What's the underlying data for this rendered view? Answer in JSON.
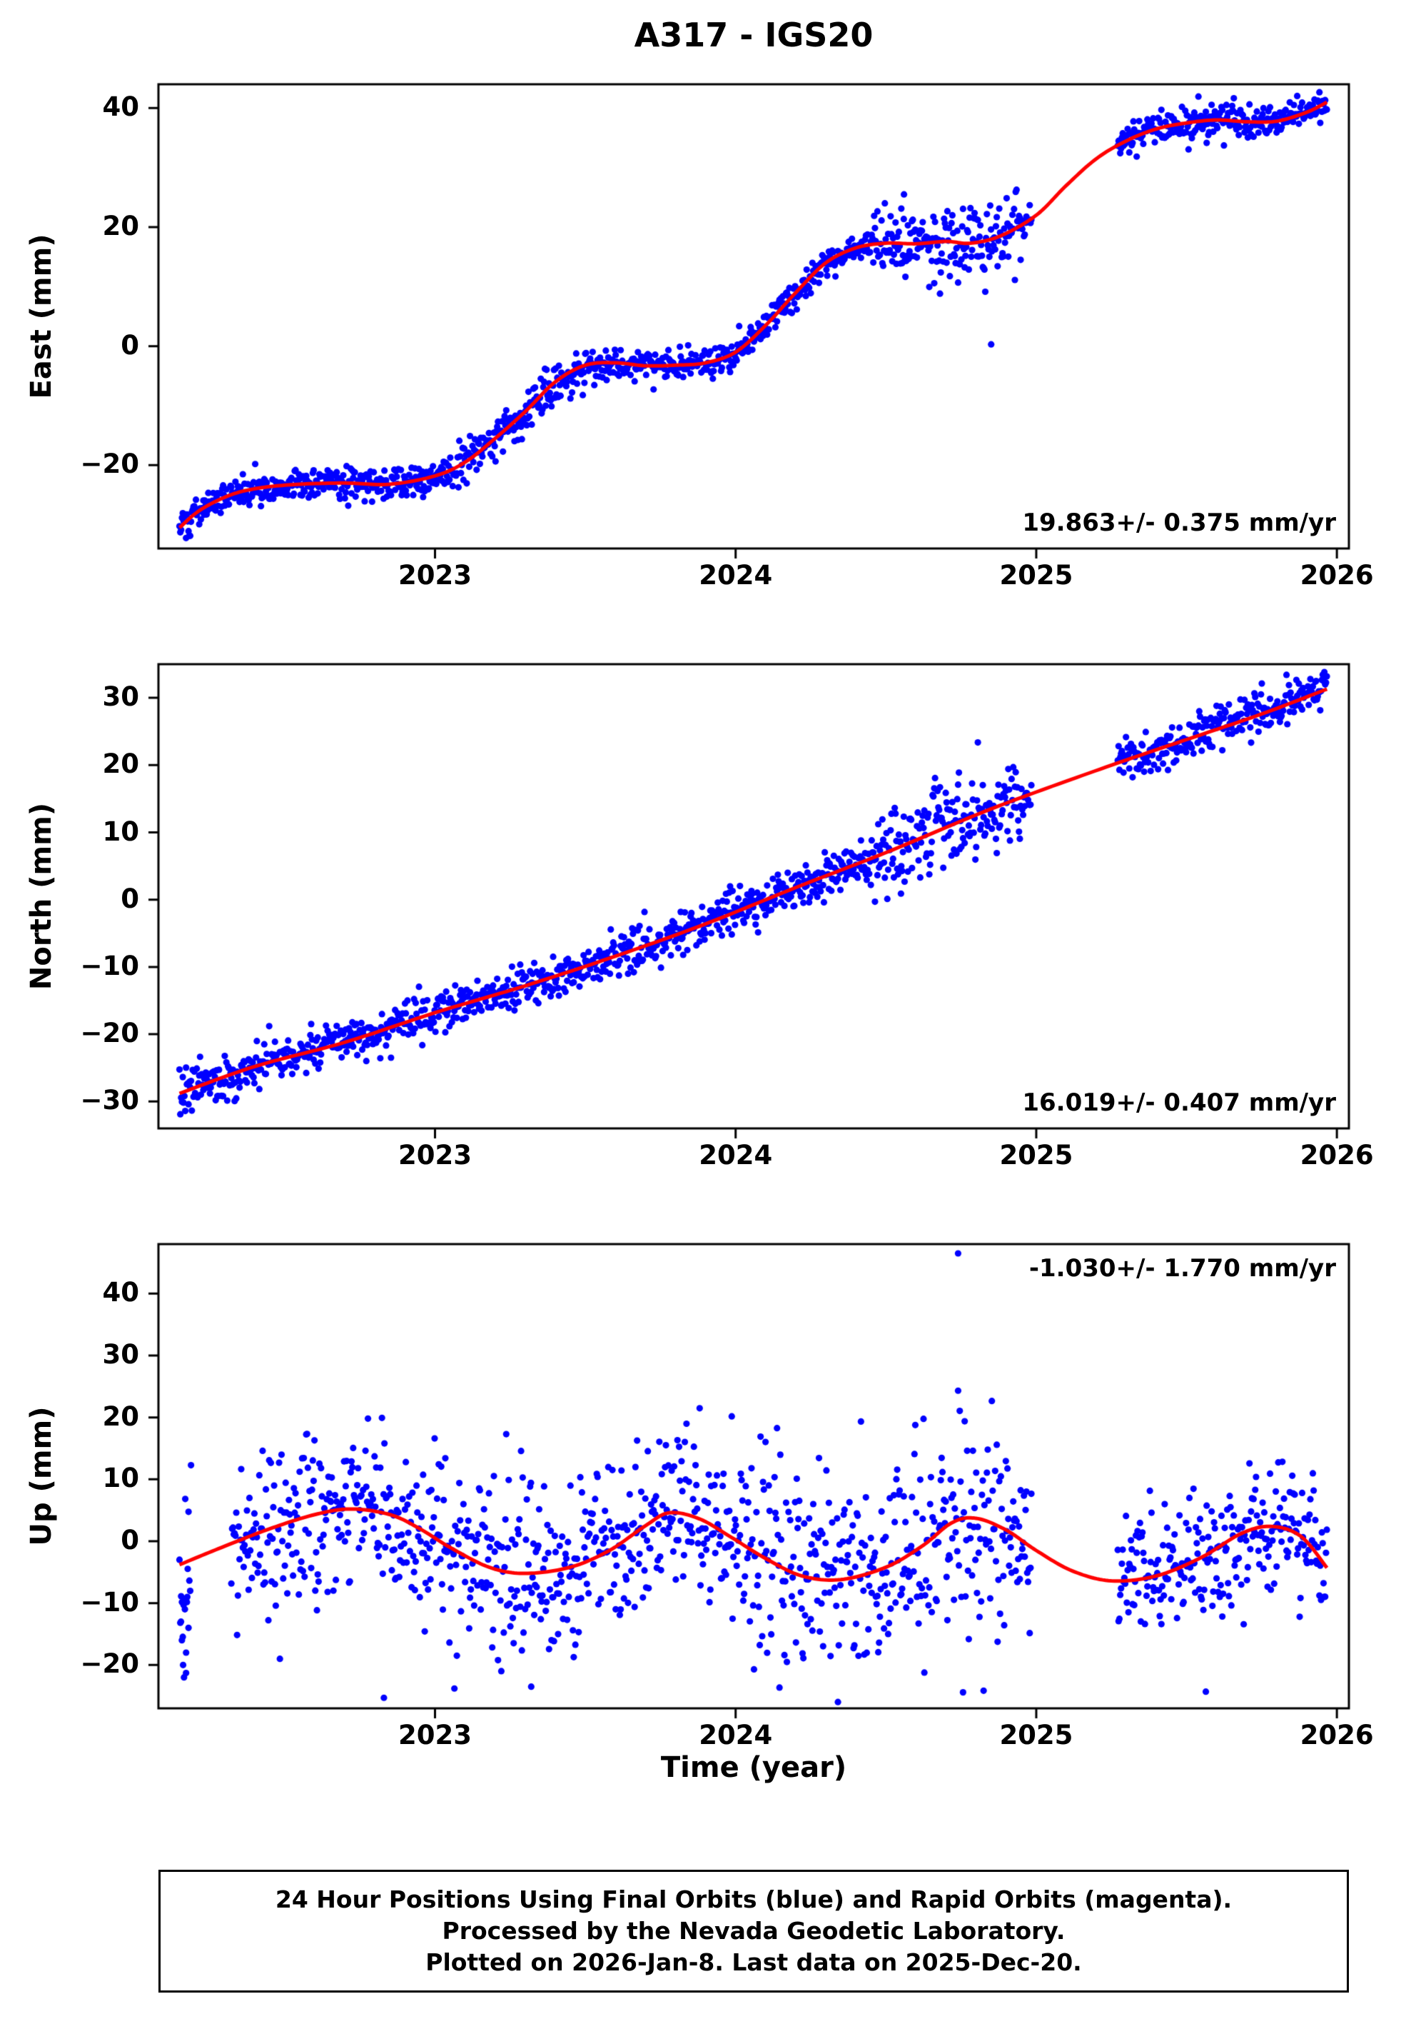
{
  "title": "A317 - IGS20",
  "xlabel": "Time (year)",
  "caption_lines": [
    "24 Hour Positions Using Final Orbits (blue) and Rapid Orbits (magenta).",
    "Processed by the Nevada Geodetic Laboratory.",
    "Plotted on 2026-Jan-8. Last data on 2025-Dec-20."
  ],
  "colors": {
    "point": "#0000ff",
    "fit": "#ff0000",
    "frame": "#000000"
  },
  "chart_data": [
    {
      "type": "scatter",
      "ylabel": "East (mm)",
      "annotation": "19.863+/- 0.375 mm/yr",
      "annotation_corner": "bottom-right",
      "xlim": [
        2022.08,
        2026.04
      ],
      "ylim": [
        -34,
        44
      ],
      "xticks": [
        2023,
        2024,
        2025,
        2026
      ],
      "yticks": [
        -20,
        0,
        20,
        40
      ],
      "fit_line": [
        [
          2022.15,
          -30.5
        ],
        [
          2022.22,
          -27.5
        ],
        [
          2022.32,
          -25.0
        ],
        [
          2022.42,
          -23.8
        ],
        [
          2022.55,
          -23.2
        ],
        [
          2022.7,
          -23.0
        ],
        [
          2022.85,
          -23.2
        ],
        [
          2023.0,
          -21.8
        ],
        [
          2023.1,
          -19.5
        ],
        [
          2023.2,
          -15.5
        ],
        [
          2023.3,
          -11.0
        ],
        [
          2023.4,
          -6.0
        ],
        [
          2023.5,
          -3.2
        ],
        [
          2023.6,
          -2.8
        ],
        [
          2023.7,
          -3.3
        ],
        [
          2023.8,
          -3.2
        ],
        [
          2023.9,
          -2.8
        ],
        [
          2024.0,
          -1.0
        ],
        [
          2024.1,
          3.5
        ],
        [
          2024.2,
          9.0
        ],
        [
          2024.3,
          14.0
        ],
        [
          2024.4,
          16.5
        ],
        [
          2024.5,
          17.3
        ],
        [
          2024.6,
          17.2
        ],
        [
          2024.7,
          17.6
        ],
        [
          2024.78,
          17.3
        ],
        [
          2024.88,
          18.5
        ],
        [
          2025.0,
          22.0
        ],
        [
          2025.1,
          27.0
        ],
        [
          2025.2,
          31.5
        ],
        [
          2025.3,
          34.5
        ],
        [
          2025.4,
          36.5
        ],
        [
          2025.5,
          37.5
        ],
        [
          2025.6,
          38.0
        ],
        [
          2025.7,
          37.7
        ],
        [
          2025.8,
          37.8
        ],
        [
          2025.9,
          39.3
        ],
        [
          2025.967,
          41.0
        ]
      ],
      "scatter": {
        "start": 2022.15,
        "end": 2025.967,
        "step_days": 1,
        "sigma": 1.3,
        "seed": 101,
        "gaps": [
          [
            2024.985,
            2025.27
          ]
        ],
        "noise_windows": [
          {
            "from": 2023.05,
            "to": 2023.5,
            "sigma": 1.9
          },
          {
            "from": 2024.45,
            "to": 2024.95,
            "sigma": 3.3
          }
        ],
        "outliers": [
          [
            2024.56,
            25.5
          ],
          [
            2024.85,
            0.3
          ]
        ]
      }
    },
    {
      "type": "scatter",
      "ylabel": "North (mm)",
      "annotation": "16.019+/- 0.407 mm/yr",
      "annotation_corner": "bottom-right",
      "xlim": [
        2022.08,
        2026.04
      ],
      "ylim": [
        -34,
        35
      ],
      "xticks": [
        2023,
        2024,
        2025,
        2026
      ],
      "yticks": [
        -30,
        -20,
        -10,
        0,
        10,
        20,
        30
      ],
      "fit_line": [
        [
          2022.15,
          -28.8
        ],
        [
          2022.4,
          -24.8
        ],
        [
          2022.7,
          -21.2
        ],
        [
          2023.0,
          -16.8
        ],
        [
          2023.3,
          -12.8
        ],
        [
          2023.6,
          -8.4
        ],
        [
          2023.9,
          -3.6
        ],
        [
          2024.2,
          1.8
        ],
        [
          2024.5,
          7.0
        ],
        [
          2024.8,
          12.6
        ],
        [
          2025.0,
          16.0
        ],
        [
          2025.27,
          20.3
        ],
        [
          2025.5,
          23.8
        ],
        [
          2025.75,
          27.6
        ],
        [
          2025.967,
          31.3
        ]
      ],
      "scatter": {
        "start": 2022.15,
        "end": 2025.967,
        "step_days": 1,
        "sigma": 1.5,
        "seed": 202,
        "gaps": [
          [
            2024.985,
            2025.27
          ]
        ],
        "noise_windows": [
          {
            "from": 2022.15,
            "to": 2022.45,
            "sigma": 1.8
          },
          {
            "from": 2024.45,
            "to": 2024.95,
            "sigma": 3.2
          }
        ],
        "outliers": [
          [
            2024.55,
            0.9
          ]
        ]
      }
    },
    {
      "type": "scatter",
      "ylabel": "Up (mm)",
      "annotation": "-1.030+/- 1.770 mm/yr",
      "annotation_corner": "top-right",
      "xlim": [
        2022.08,
        2026.04
      ],
      "ylim": [
        -27,
        48
      ],
      "xticks": [
        2023,
        2024,
        2025,
        2026
      ],
      "yticks": [
        -20,
        -10,
        0,
        10,
        20,
        30,
        40
      ],
      "fit_line": [
        [
          2022.15,
          -3.8
        ],
        [
          2022.28,
          -1.2
        ],
        [
          2022.45,
          2.0
        ],
        [
          2022.6,
          4.3
        ],
        [
          2022.72,
          5.2
        ],
        [
          2022.85,
          4.3
        ],
        [
          2022.95,
          2.0
        ],
        [
          2023.05,
          -1.0
        ],
        [
          2023.18,
          -4.2
        ],
        [
          2023.3,
          -5.2
        ],
        [
          2023.45,
          -4.2
        ],
        [
          2023.58,
          -1.5
        ],
        [
          2023.7,
          2.5
        ],
        [
          2023.78,
          4.6
        ],
        [
          2023.88,
          3.6
        ],
        [
          2023.98,
          0.8
        ],
        [
          2024.1,
          -2.8
        ],
        [
          2024.22,
          -5.6
        ],
        [
          2024.35,
          -6.2
        ],
        [
          2024.5,
          -4.2
        ],
        [
          2024.62,
          -0.8
        ],
        [
          2024.72,
          3.0
        ],
        [
          2024.8,
          3.7
        ],
        [
          2024.9,
          1.8
        ],
        [
          2025.0,
          -1.5
        ],
        [
          2025.12,
          -4.8
        ],
        [
          2025.25,
          -6.4
        ],
        [
          2025.4,
          -5.6
        ],
        [
          2025.55,
          -2.6
        ],
        [
          2025.68,
          1.2
        ],
        [
          2025.78,
          2.4
        ],
        [
          2025.88,
          0.8
        ],
        [
          2025.967,
          -4.3
        ]
      ],
      "scatter": {
        "start": 2022.15,
        "end": 2025.967,
        "step_days": 1,
        "sigma": 6.5,
        "seed": 303,
        "gaps": [
          [
            2022.19,
            2022.32
          ],
          [
            2024.985,
            2025.27
          ]
        ],
        "noise_windows": [
          {
            "from": 2024.05,
            "to": 2024.45,
            "sigma": 8.0
          },
          {
            "from": 2024.55,
            "to": 2024.9,
            "sigma": 9.0
          },
          {
            "from": 2025.27,
            "to": 2025.97,
            "sigma": 5.5
          }
        ],
        "outliers": [
          [
            2024.74,
            46.5
          ],
          [
            2022.83,
            -25.3
          ],
          [
            2023.32,
            -23.5
          ],
          [
            2022.155,
            -13
          ],
          [
            2022.158,
            -16
          ],
          [
            2022.162,
            -20
          ],
          [
            2022.165,
            -22
          ],
          [
            2022.168,
            -11
          ],
          [
            2022.172,
            -18
          ],
          [
            2022.176,
            -9
          ],
          [
            2022.18,
            -14
          ]
        ]
      }
    }
  ]
}
